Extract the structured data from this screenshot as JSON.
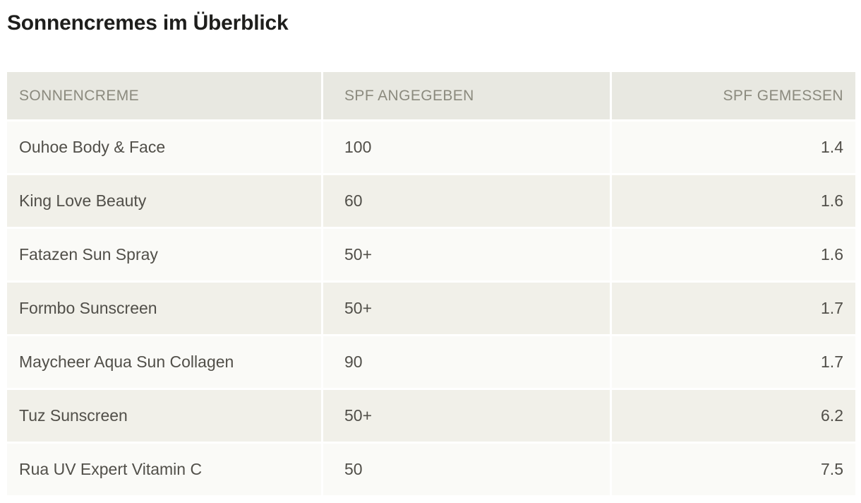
{
  "page": {
    "title": "Sonnencremes im Überblick"
  },
  "table": {
    "columns": [
      {
        "label": "SONNENCREME",
        "align": "left"
      },
      {
        "label": "SPF ANGEGEBEN",
        "align": "left"
      },
      {
        "label": "SPF GEMESSEN",
        "align": "right"
      }
    ],
    "rows": [
      {
        "name": "Ouhoe Body & Face",
        "spf_stated": "100",
        "spf_measured": "1.4"
      },
      {
        "name": "King Love Beauty",
        "spf_stated": "60",
        "spf_measured": "1.6"
      },
      {
        "name": "Fatazen Sun Spray",
        "spf_stated": "50+",
        "spf_measured": "1.6"
      },
      {
        "name": "Formbo Sunscreen",
        "spf_stated": "50+",
        "spf_measured": "1.7"
      },
      {
        "name": "Maycheer Aqua Sun Collagen",
        "spf_stated": "90",
        "spf_measured": "1.7"
      },
      {
        "name": "Tuz Sunscreen",
        "spf_stated": "50+",
        "spf_measured": "6.2"
      },
      {
        "name": "Rua UV Expert Vitamin C",
        "spf_stated": "50",
        "spf_measured": "7.5"
      }
    ]
  },
  "colors": {
    "header_background": "#e8e8e1",
    "header_text": "#8b8a7e",
    "row_light_background": "#fafaf7",
    "row_dark_background": "#f1f0e9",
    "body_text": "#514f49",
    "title_text": "#1e1e1c",
    "gutter": "#ffffff"
  },
  "chart_data": {
    "type": "table",
    "title": "Sonnencremes im Überblick",
    "columns": [
      "SONNENCREME",
      "SPF ANGEGEBEN",
      "SPF GEMESSEN"
    ],
    "rows": [
      [
        "Ouhoe Body & Face",
        "100",
        1.4
      ],
      [
        "King Love Beauty",
        "60",
        1.6
      ],
      [
        "Fatazen Sun Spray",
        "50+",
        1.6
      ],
      [
        "Formbo Sunscreen",
        "50+",
        1.7
      ],
      [
        "Maycheer Aqua Sun Collagen",
        "90",
        1.7
      ],
      [
        "Tuz Sunscreen",
        "50+",
        6.2
      ],
      [
        "Rua UV Expert Vitamin C",
        "50",
        7.5
      ]
    ],
    "layout": {
      "striped_rows": true,
      "measured_column_align": "right",
      "grid": "white 3px gutters between cells"
    }
  }
}
